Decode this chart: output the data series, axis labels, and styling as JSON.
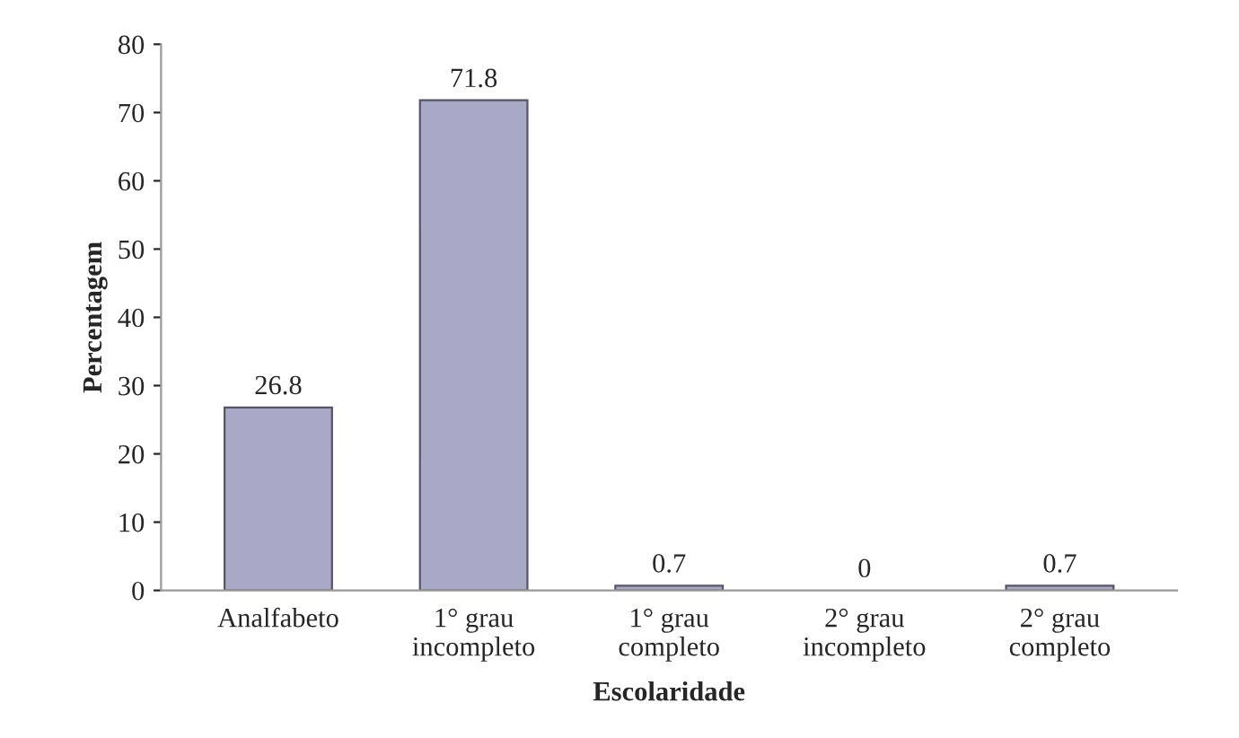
{
  "chart_data": {
    "type": "bar",
    "xlabel": "Escolaridade",
    "ylabel": "Percentagem",
    "categories": [
      "Analfabeto",
      "1° grau incompleto",
      "1° grau completo",
      "2° grau incompleto",
      "2° grau completo"
    ],
    "values": [
      26.8,
      71.8,
      0.7,
      0,
      0.7
    ],
    "color": "#a9a8c6",
    "ylim": [
      0,
      80
    ],
    "yticks": [
      0,
      10,
      20,
      30,
      40,
      50,
      60,
      70,
      80
    ],
    "data_labels": true,
    "grid": false
  }
}
